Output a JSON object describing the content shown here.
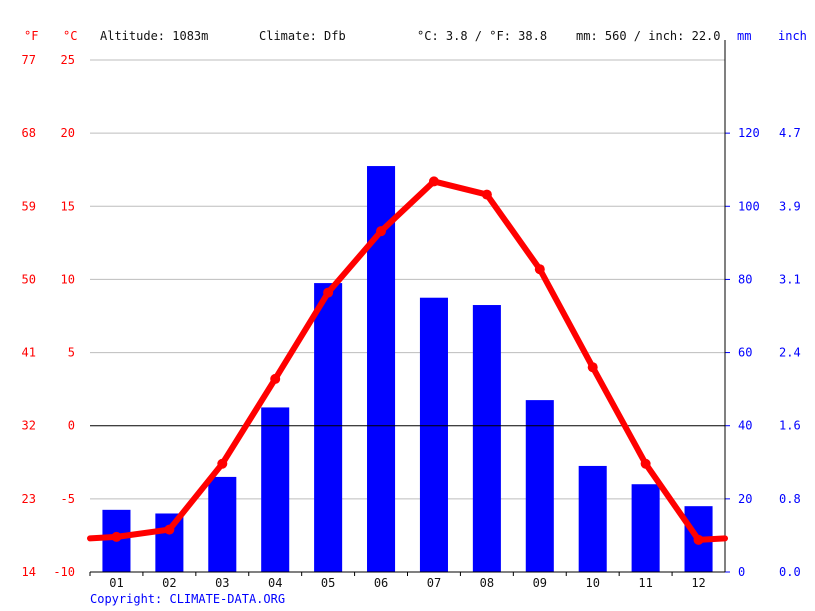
{
  "header": {
    "f_unit": "°F",
    "c_unit": "°C",
    "altitude": "Altitude: 1083m",
    "climate": "Climate: Dfb",
    "temp_summary": "°C: 3.8 / °F: 38.8",
    "precip_summary": "mm: 560 / inch: 22.0",
    "mm_unit": "mm",
    "inch_unit": "inch"
  },
  "footer": {
    "copyright": "Copyright: CLIMATE-DATA.ORG"
  },
  "colors": {
    "temperature": "#ff0000",
    "precipitation": "#0000ff",
    "zero_line": "#000000"
  },
  "chart_data": {
    "type": "bar+line",
    "categories": [
      "01",
      "02",
      "03",
      "04",
      "05",
      "06",
      "07",
      "08",
      "09",
      "10",
      "11",
      "12"
    ],
    "series": [
      {
        "kind": "bar",
        "axis": "precipitation_mm",
        "values": [
          17,
          16,
          26,
          45,
          79,
          111,
          75,
          73,
          47,
          29,
          24,
          18
        ]
      },
      {
        "kind": "line",
        "axis": "temperature_c",
        "values": [
          -7.6,
          -7.1,
          -2.6,
          3.2,
          9.1,
          13.3,
          16.7,
          15.8,
          10.7,
          4.0,
          -2.6,
          -7.8
        ]
      }
    ],
    "left_axis_f": {
      "ticks": [
        "77",
        "68",
        "59",
        "50",
        "41",
        "32",
        "23",
        "14"
      ]
    },
    "left_axis_c": {
      "ticks": [
        "25",
        "20",
        "15",
        "10",
        "5",
        "0",
        "-5",
        "-10"
      ],
      "range": [
        -10,
        25
      ]
    },
    "right_axis_mm": {
      "ticks": [
        "120",
        "100",
        "80",
        "60",
        "40",
        "20",
        "0"
      ],
      "range": [
        0,
        140
      ]
    },
    "right_axis_inch": {
      "ticks": [
        "4.7",
        "3.9",
        "3.1",
        "2.4",
        "1.6",
        "0.8",
        "0.0"
      ]
    },
    "grid": true
  }
}
